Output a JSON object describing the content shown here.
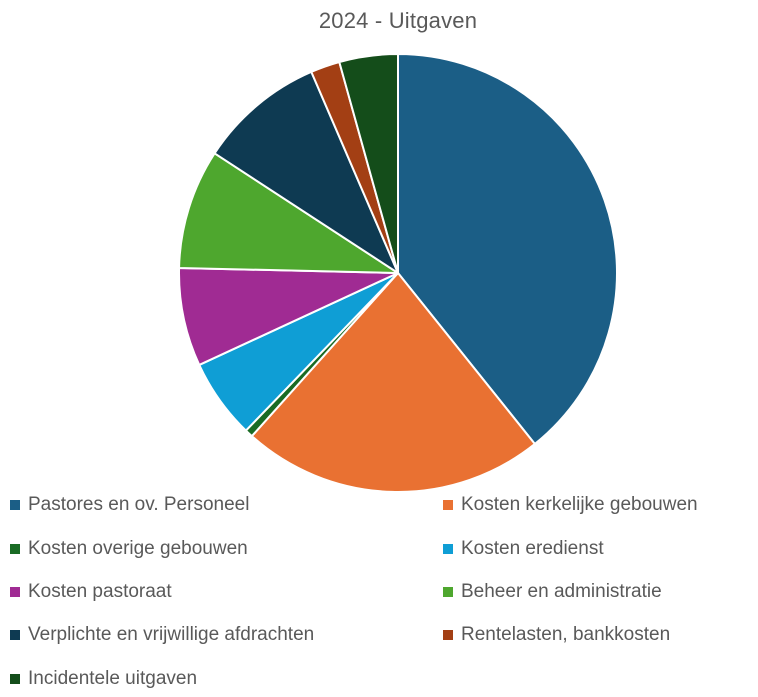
{
  "chart_data": {
    "type": "pie",
    "title": "2024 - Uitgaven",
    "legend_position": "bottom",
    "slices": [
      {
        "label": "Pastores en ov. Personeel",
        "value": 40.0,
        "color": "#1b5e86"
      },
      {
        "label": "Kosten kerkelijke gebouwen",
        "value": 22.8,
        "color": "#e97132"
      },
      {
        "label": "Kosten overige gebouwen",
        "value": 0.6,
        "color": "#196b24"
      },
      {
        "label": "Kosten eredienst",
        "value": 6.0,
        "color": "#0f9ed5"
      },
      {
        "label": "Kosten pastoraat",
        "value": 7.4,
        "color": "#a02b93"
      },
      {
        "label": "Beheer en administratie",
        "value": 9.0,
        "color": "#4ea72e"
      },
      {
        "label": "Verplichte en vrijwillige afdrachten",
        "value": 9.5,
        "color": "#0e3a52"
      },
      {
        "label": "Rentelasten, bankkosten",
        "value": 2.2,
        "color": "#a33f14"
      },
      {
        "label": "Incidentele uitgaven",
        "value": 4.4,
        "color": "#144d1a"
      }
    ]
  }
}
